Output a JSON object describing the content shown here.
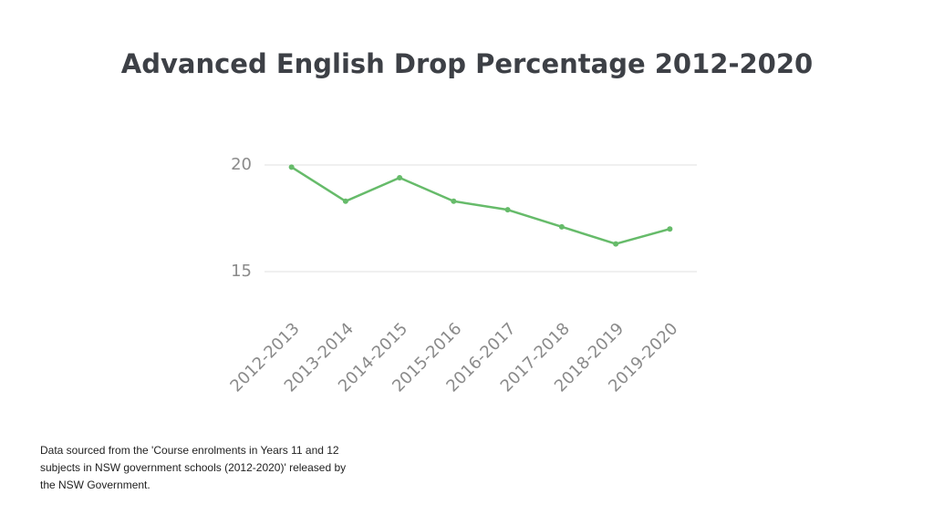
{
  "chart_data": {
    "type": "line",
    "title": "Advanced English Drop Percentage 2012-2020",
    "categories": [
      "2012-2013",
      "2013-2014",
      "2014-2015",
      "2015-2016",
      "2016-2017",
      "2017-2018",
      "2018-2019",
      "2019-2020"
    ],
    "series": [
      {
        "name": "Advanced English Drop Percentage",
        "color": "#66bb6a",
        "values": [
          19.9,
          18.3,
          19.4,
          18.3,
          17.9,
          17.1,
          16.3,
          17.0
        ]
      }
    ],
    "ylim": [
      14,
      21
    ],
    "yticks": [
      15,
      20
    ],
    "grid": true
  },
  "footnote": [
    "Data sourced from the 'Course enrolments in Years 11 and 12",
    "subjects in NSW government schools (2012-2020)' released by",
    "the NSW Government."
  ]
}
